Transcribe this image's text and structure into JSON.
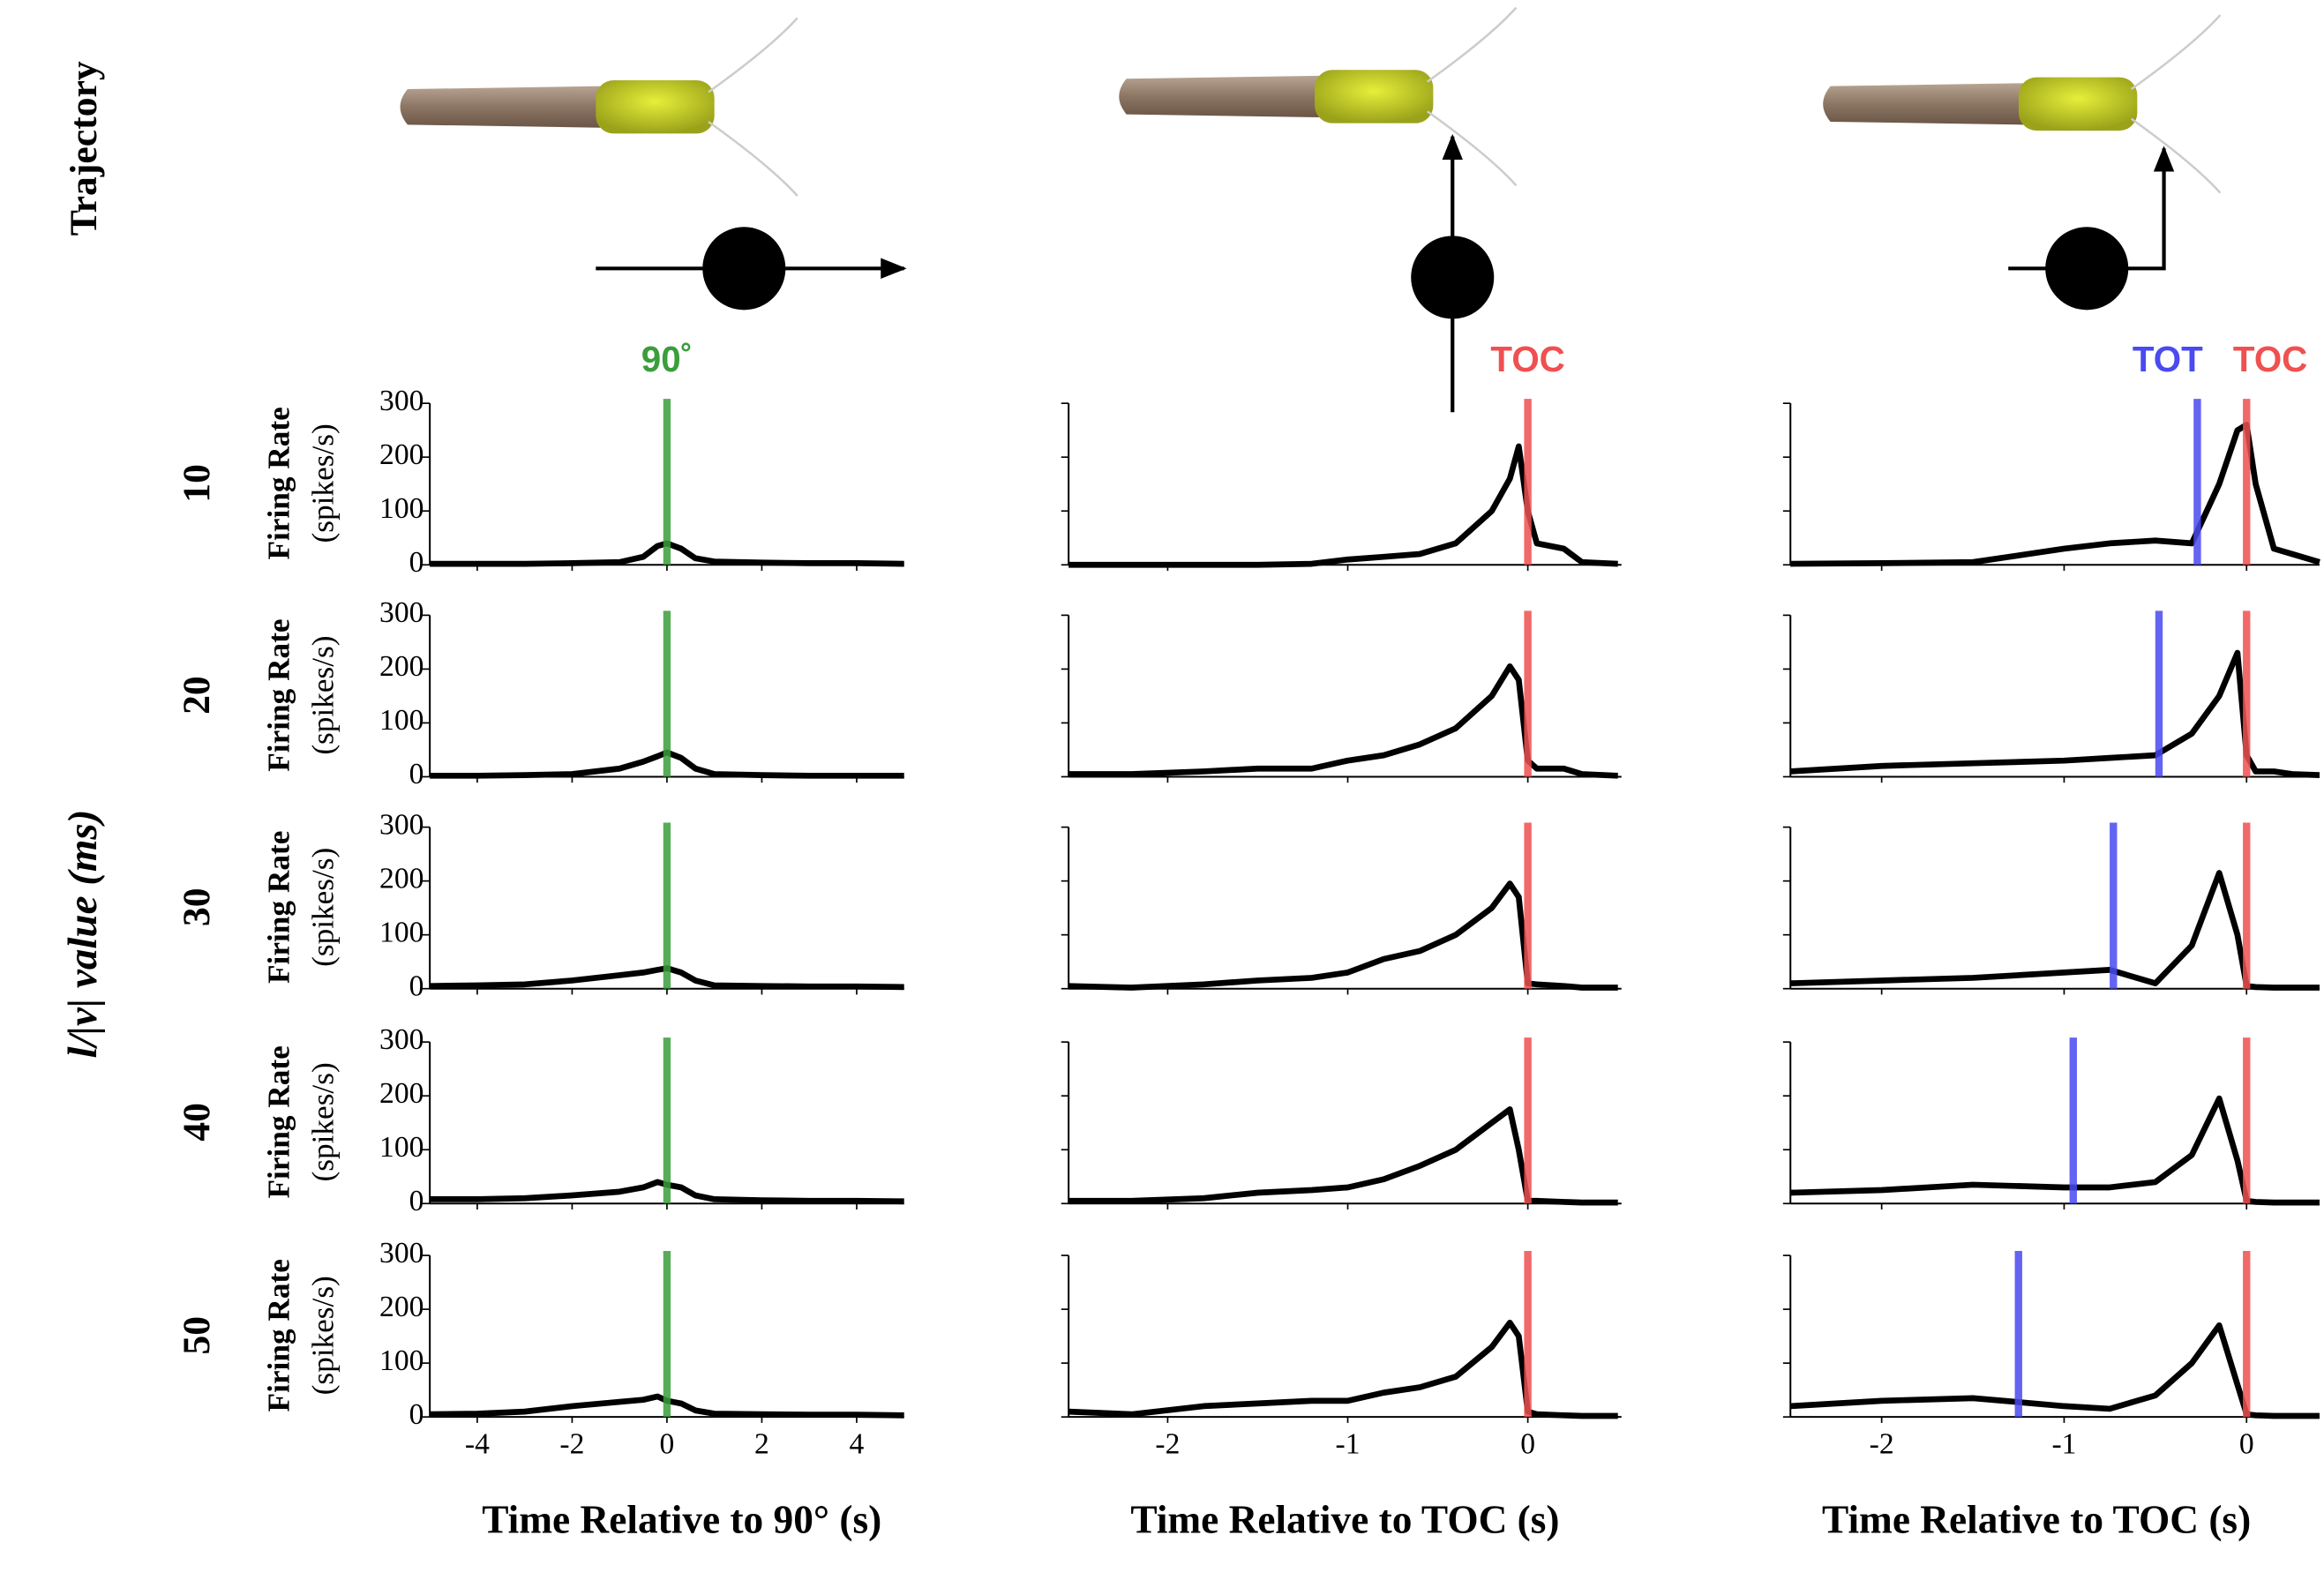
{
  "figure": {
    "trajectory_label": "Trajectory",
    "group_label": "l/|v| value (ms)",
    "rows": [
      "10",
      "20",
      "30",
      "40",
      "50"
    ]
  },
  "chart_data": [
    {
      "type": "line",
      "x": [
        -5,
        -4,
        -3,
        -2,
        -1,
        -0.5,
        -0.2,
        0,
        0.3,
        0.6,
        1,
        2,
        3,
        4,
        5
      ],
      "values": [
        2,
        2,
        2,
        3,
        5,
        15,
        35,
        40,
        30,
        12,
        6,
        4,
        3,
        3,
        2
      ],
      "color": "#000000",
      "xlim": [
        -5,
        5
      ],
      "ylim": [
        0,
        300
      ],
      "xticks": [
        -4,
        -2,
        0,
        2,
        4
      ],
      "yticks": [
        0,
        100,
        200,
        300
      ],
      "ytick_labels": true,
      "xtick_labels": false,
      "ylabel": [
        "Firing Rate",
        "(spikes/s)"
      ],
      "markers": [
        {
          "x": 0,
          "color": "#3a9e3a",
          "label": "90˚"
        }
      ]
    },
    {
      "type": "line",
      "x": [
        -5,
        -4,
        -3,
        -2,
        -1,
        -0.5,
        -0.2,
        0,
        0.3,
        0.6,
        1,
        2,
        3,
        4,
        5
      ],
      "values": [
        2,
        2,
        3,
        5,
        15,
        28,
        38,
        45,
        35,
        15,
        5,
        3,
        2,
        2,
        2
      ],
      "color": "#000000",
      "xlim": [
        -5,
        5
      ],
      "ylim": [
        0,
        300
      ],
      "xticks": [
        -4,
        -2,
        0,
        2,
        4
      ],
      "yticks": [
        0,
        100,
        200,
        300
      ],
      "ytick_labels": true,
      "xtick_labels": false,
      "ylabel": [
        "Firing Rate",
        "(spikes/s)"
      ],
      "markers": [
        {
          "x": 0,
          "color": "#3a9e3a"
        }
      ]
    },
    {
      "type": "line",
      "x": [
        -5,
        -4,
        -3,
        -2,
        -1,
        -0.5,
        -0.2,
        0,
        0.3,
        0.6,
        1,
        2,
        3,
        4,
        5
      ],
      "values": [
        5,
        6,
        8,
        15,
        25,
        30,
        35,
        38,
        30,
        15,
        6,
        5,
        4,
        4,
        3
      ],
      "color": "#000000",
      "xlim": [
        -5,
        5
      ],
      "ylim": [
        0,
        300
      ],
      "xticks": [
        -4,
        -2,
        0,
        2,
        4
      ],
      "yticks": [
        0,
        100,
        200,
        300
      ],
      "ytick_labels": true,
      "xtick_labels": false,
      "ylabel": [
        "Firing Rate",
        "(spikes/s)"
      ],
      "markers": [
        {
          "x": 0,
          "color": "#3a9e3a"
        }
      ]
    },
    {
      "type": "line",
      "x": [
        -5,
        -4,
        -3,
        -2,
        -1,
        -0.5,
        -0.2,
        0,
        0.3,
        0.6,
        1,
        2,
        3,
        4,
        5
      ],
      "values": [
        8,
        8,
        10,
        15,
        22,
        30,
        40,
        35,
        30,
        15,
        8,
        6,
        5,
        5,
        4
      ],
      "color": "#000000",
      "xlim": [
        -5,
        5
      ],
      "ylim": [
        0,
        300
      ],
      "xticks": [
        -4,
        -2,
        0,
        2,
        4
      ],
      "yticks": [
        0,
        100,
        200,
        300
      ],
      "ytick_labels": true,
      "xtick_labels": false,
      "ylabel": [
        "Firing Rate",
        "(spikes/s)"
      ],
      "markers": [
        {
          "x": 0,
          "color": "#3a9e3a"
        }
      ]
    },
    {
      "type": "line",
      "x": [
        -5,
        -4,
        -3,
        -2,
        -1,
        -0.5,
        -0.2,
        0,
        0.3,
        0.6,
        1,
        2,
        3,
        4,
        5
      ],
      "values": [
        5,
        6,
        10,
        20,
        28,
        32,
        38,
        30,
        25,
        12,
        6,
        5,
        4,
        4,
        3
      ],
      "color": "#000000",
      "xlim": [
        -5,
        5
      ],
      "ylim": [
        0,
        300
      ],
      "xticks": [
        -4,
        -2,
        0,
        2,
        4
      ],
      "yticks": [
        0,
        100,
        200,
        300
      ],
      "ytick_labels": true,
      "xtick_labels": true,
      "ylabel": [
        "Firing Rate",
        "(spikes/s)"
      ],
      "xlabel": "Time Relative to 90° (s)",
      "markers": [
        {
          "x": 0,
          "color": "#3a9e3a"
        }
      ]
    },
    {
      "type": "line",
      "x": [
        -2.55,
        -2.2,
        -1.8,
        -1.5,
        -1.2,
        -1,
        -0.8,
        -0.6,
        -0.4,
        -0.2,
        -0.1,
        -0.05,
        0,
        0.05,
        0.2,
        0.3,
        0.5
      ],
      "values": [
        0,
        0,
        0,
        0,
        2,
        10,
        15,
        20,
        40,
        100,
        160,
        220,
        100,
        40,
        30,
        5,
        2
      ],
      "color": "#000000",
      "xlim": [
        -2.55,
        0.52
      ],
      "ylim": [
        0,
        300
      ],
      "xticks": [
        -2,
        -1,
        0
      ],
      "yticks": [
        0,
        100,
        200,
        300
      ],
      "ytick_labels": false,
      "xtick_labels": false,
      "markers": [
        {
          "x": 0,
          "color": "#f05050",
          "label": "TOC"
        }
      ]
    },
    {
      "type": "line",
      "x": [
        -2.55,
        -2.2,
        -1.8,
        -1.5,
        -1.2,
        -1,
        -0.8,
        -0.6,
        -0.4,
        -0.2,
        -0.1,
        -0.05,
        0,
        0.05,
        0.2,
        0.3,
        0.5
      ],
      "values": [
        5,
        5,
        10,
        15,
        15,
        30,
        40,
        60,
        90,
        150,
        205,
        180,
        30,
        15,
        15,
        5,
        2
      ],
      "color": "#000000",
      "xlim": [
        -2.55,
        0.52
      ],
      "ylim": [
        0,
        300
      ],
      "xticks": [
        -2,
        -1,
        0
      ],
      "yticks": [
        0,
        100,
        200,
        300
      ],
      "ytick_labels": false,
      "xtick_labels": false,
      "markers": [
        {
          "x": 0,
          "color": "#f05050"
        }
      ]
    },
    {
      "type": "line",
      "x": [
        -2.55,
        -2.2,
        -1.8,
        -1.5,
        -1.2,
        -1,
        -0.8,
        -0.6,
        -0.4,
        -0.2,
        -0.1,
        -0.05,
        0,
        0.05,
        0.2,
        0.3,
        0.5
      ],
      "values": [
        5,
        2,
        8,
        15,
        20,
        30,
        55,
        70,
        100,
        150,
        195,
        170,
        10,
        8,
        5,
        2,
        2
      ],
      "color": "#000000",
      "xlim": [
        -2.55,
        0.52
      ],
      "ylim": [
        0,
        300
      ],
      "xticks": [
        -2,
        -1,
        0
      ],
      "yticks": [
        0,
        100,
        200,
        300
      ],
      "ytick_labels": false,
      "xtick_labels": false,
      "markers": [
        {
          "x": 0,
          "color": "#f05050"
        }
      ]
    },
    {
      "type": "line",
      "x": [
        -2.55,
        -2.2,
        -1.8,
        -1.5,
        -1.2,
        -1,
        -0.8,
        -0.6,
        -0.4,
        -0.2,
        -0.1,
        -0.05,
        0,
        0.05,
        0.2,
        0.3,
        0.5
      ],
      "values": [
        5,
        5,
        10,
        20,
        25,
        30,
        45,
        70,
        100,
        150,
        175,
        100,
        5,
        5,
        3,
        2,
        2
      ],
      "color": "#000000",
      "xlim": [
        -2.55,
        0.52
      ],
      "ylim": [
        0,
        300
      ],
      "xticks": [
        -2,
        -1,
        0
      ],
      "yticks": [
        0,
        100,
        200,
        300
      ],
      "ytick_labels": false,
      "xtick_labels": false,
      "markers": [
        {
          "x": 0,
          "color": "#f05050"
        }
      ]
    },
    {
      "type": "line",
      "x": [
        -2.55,
        -2.2,
        -1.8,
        -1.5,
        -1.2,
        -1,
        -0.8,
        -0.6,
        -0.4,
        -0.2,
        -0.1,
        -0.05,
        0,
        0.05,
        0.2,
        0.3,
        0.5
      ],
      "values": [
        10,
        5,
        20,
        25,
        30,
        30,
        45,
        55,
        75,
        130,
        175,
        150,
        10,
        5,
        3,
        2,
        2
      ],
      "color": "#000000",
      "xlim": [
        -2.55,
        0.52
      ],
      "ylim": [
        0,
        300
      ],
      "xticks": [
        -2,
        -1,
        0
      ],
      "yticks": [
        0,
        100,
        200,
        300
      ],
      "ytick_labels": false,
      "xtick_labels": true,
      "xlabel": "Time Relative to TOC (s)",
      "markers": [
        {
          "x": 0,
          "color": "#f05050"
        }
      ]
    },
    {
      "type": "line",
      "x": [
        -2.5,
        -2,
        -1.5,
        -1,
        -0.75,
        -0.5,
        -0.3,
        -0.15,
        -0.05,
        0,
        0.05,
        0.15,
        0.25,
        0.4
      ],
      "values": [
        2,
        3,
        5,
        30,
        40,
        45,
        40,
        150,
        250,
        260,
        150,
        30,
        20,
        5
      ],
      "color": "#000000",
      "xlim": [
        -2.5,
        0.4
      ],
      "ylim": [
        0,
        300
      ],
      "xticks": [
        -2,
        -1,
        0
      ],
      "yticks": [
        0,
        100,
        200,
        300
      ],
      "ytick_labels": false,
      "xtick_labels": false,
      "markers": [
        {
          "x": -0.27,
          "color": "#4a4af0",
          "label": "TOT"
        },
        {
          "x": 0,
          "color": "#f05050",
          "label": "TOC"
        }
      ]
    },
    {
      "type": "line",
      "x": [
        -2.5,
        -2,
        -1.5,
        -1,
        -0.75,
        -0.5,
        -0.3,
        -0.15,
        -0.05,
        0,
        0.05,
        0.15,
        0.25,
        0.4
      ],
      "values": [
        10,
        20,
        25,
        30,
        35,
        40,
        80,
        150,
        230,
        40,
        10,
        10,
        5,
        3
      ],
      "color": "#000000",
      "xlim": [
        -2.5,
        0.4
      ],
      "ylim": [
        0,
        300
      ],
      "xticks": [
        -2,
        -1,
        0
      ],
      "yticks": [
        0,
        100,
        200,
        300
      ],
      "ytick_labels": false,
      "xtick_labels": false,
      "markers": [
        {
          "x": -0.48,
          "color": "#4a4af0"
        },
        {
          "x": 0,
          "color": "#f05050"
        }
      ]
    },
    {
      "type": "line",
      "x": [
        -2.5,
        -2,
        -1.5,
        -1,
        -0.75,
        -0.5,
        -0.3,
        -0.15,
        -0.05,
        0,
        0.05,
        0.15,
        0.25,
        0.4
      ],
      "values": [
        10,
        15,
        20,
        30,
        35,
        10,
        80,
        215,
        100,
        5,
        3,
        2,
        2,
        2
      ],
      "color": "#000000",
      "xlim": [
        -2.5,
        0.4
      ],
      "ylim": [
        0,
        300
      ],
      "xticks": [
        -2,
        -1,
        0
      ],
      "yticks": [
        0,
        100,
        200,
        300
      ],
      "ytick_labels": false,
      "xtick_labels": false,
      "markers": [
        {
          "x": -0.73,
          "color": "#4a4af0"
        },
        {
          "x": 0,
          "color": "#f05050"
        }
      ]
    },
    {
      "type": "line",
      "x": [
        -2.5,
        -2,
        -1.5,
        -1,
        -0.75,
        -0.5,
        -0.3,
        -0.15,
        -0.05,
        0,
        0.05,
        0.15,
        0.25,
        0.4
      ],
      "values": [
        20,
        25,
        35,
        30,
        30,
        40,
        90,
        195,
        80,
        5,
        3,
        2,
        2,
        2
      ],
      "color": "#000000",
      "xlim": [
        -2.5,
        0.4
      ],
      "ylim": [
        0,
        300
      ],
      "xticks": [
        -2,
        -1,
        0
      ],
      "yticks": [
        0,
        100,
        200,
        300
      ],
      "ytick_labels": false,
      "xtick_labels": false,
      "markers": [
        {
          "x": -0.95,
          "color": "#4a4af0"
        },
        {
          "x": 0,
          "color": "#f05050"
        }
      ]
    },
    {
      "type": "line",
      "x": [
        -2.5,
        -2,
        -1.5,
        -1,
        -0.75,
        -0.5,
        -0.3,
        -0.15,
        -0.05,
        0,
        0.05,
        0.15,
        0.25,
        0.4
      ],
      "values": [
        20,
        30,
        35,
        20,
        15,
        40,
        100,
        170,
        60,
        5,
        3,
        2,
        2,
        2
      ],
      "color": "#000000",
      "xlim": [
        -2.5,
        0.4
      ],
      "ylim": [
        0,
        300
      ],
      "xticks": [
        -2,
        -1,
        0
      ],
      "yticks": [
        0,
        100,
        200,
        300
      ],
      "ytick_labels": false,
      "xtick_labels": true,
      "xlabel": "Time Relative to TOC (s)",
      "markers": [
        {
          "x": -1.25,
          "color": "#4a4af0"
        },
        {
          "x": 0,
          "color": "#f05050"
        }
      ]
    }
  ]
}
